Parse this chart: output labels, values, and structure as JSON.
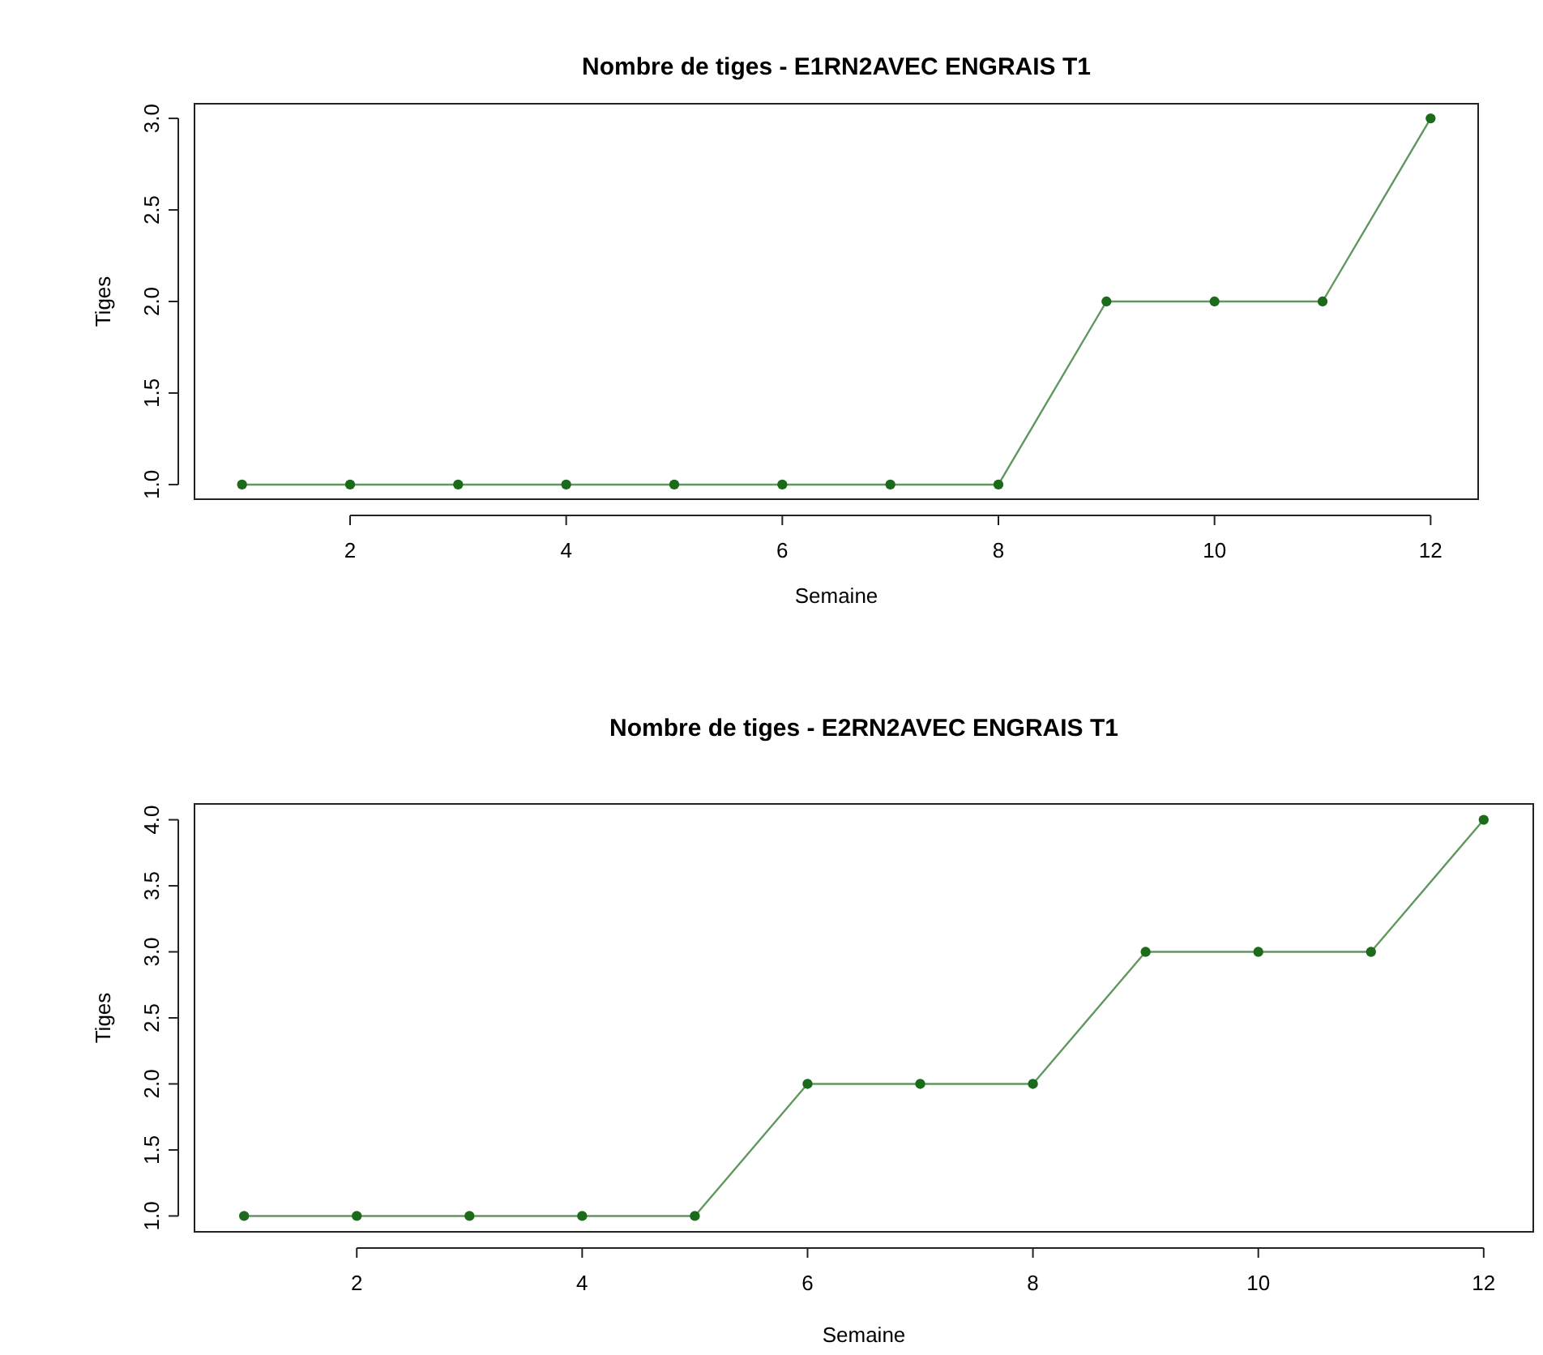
{
  "chart_data": [
    {
      "type": "line",
      "title": "Nombre de tiges - E1RN2AVEC ENGRAIS T1",
      "xlabel": "Semaine",
      "ylabel": "Tiges",
      "x": [
        1,
        2,
        3,
        4,
        5,
        6,
        7,
        8,
        9,
        10,
        11,
        12
      ],
      "series": [
        {
          "color": "#1b6b1b",
          "values": [
            1,
            1,
            1,
            1,
            1,
            1,
            1,
            1,
            2,
            2,
            2,
            3
          ]
        }
      ],
      "xlim": [
        0.56,
        12.44
      ],
      "xticks": [
        2,
        4,
        6,
        8,
        10,
        12
      ],
      "ylim": [
        0.92,
        3.08
      ],
      "yticks": [
        {
          "value": 1,
          "label": "1.0"
        },
        {
          "value": 1.5,
          "label": "1.5"
        },
        {
          "value": 2,
          "label": "2.0"
        },
        {
          "value": 2.5,
          "label": "2.5"
        },
        {
          "value": 3,
          "label": "3.0"
        }
      ],
      "marker": "circle",
      "grid": false
    },
    {
      "type": "line",
      "title": "Nombre de tiges - E2RN2AVEC ENGRAIS T1",
      "xlabel": "Semaine",
      "ylabel": "Tiges",
      "x": [
        1,
        2,
        3,
        4,
        5,
        6,
        7,
        8,
        9,
        10,
        11,
        12
      ],
      "series": [
        {
          "color": "#1b6b1b",
          "values": [
            1,
            1,
            1,
            1,
            1,
            2,
            2,
            2,
            3,
            3,
            3,
            4
          ]
        }
      ],
      "xlim": [
        0.56,
        12.44
      ],
      "xticks": [
        2,
        4,
        6,
        8,
        10,
        12
      ],
      "ylim": [
        0.88,
        4.12
      ],
      "yticks": [
        {
          "value": 1,
          "label": "1.0"
        },
        {
          "value": 1.5,
          "label": "1.5"
        },
        {
          "value": 2,
          "label": "2.0"
        },
        {
          "value": 2.5,
          "label": "2.5"
        },
        {
          "value": 3,
          "label": "3.0"
        },
        {
          "value": 3.5,
          "label": "3.5"
        },
        {
          "value": 4,
          "label": "4.0"
        }
      ],
      "marker": "circle",
      "grid": false
    }
  ]
}
